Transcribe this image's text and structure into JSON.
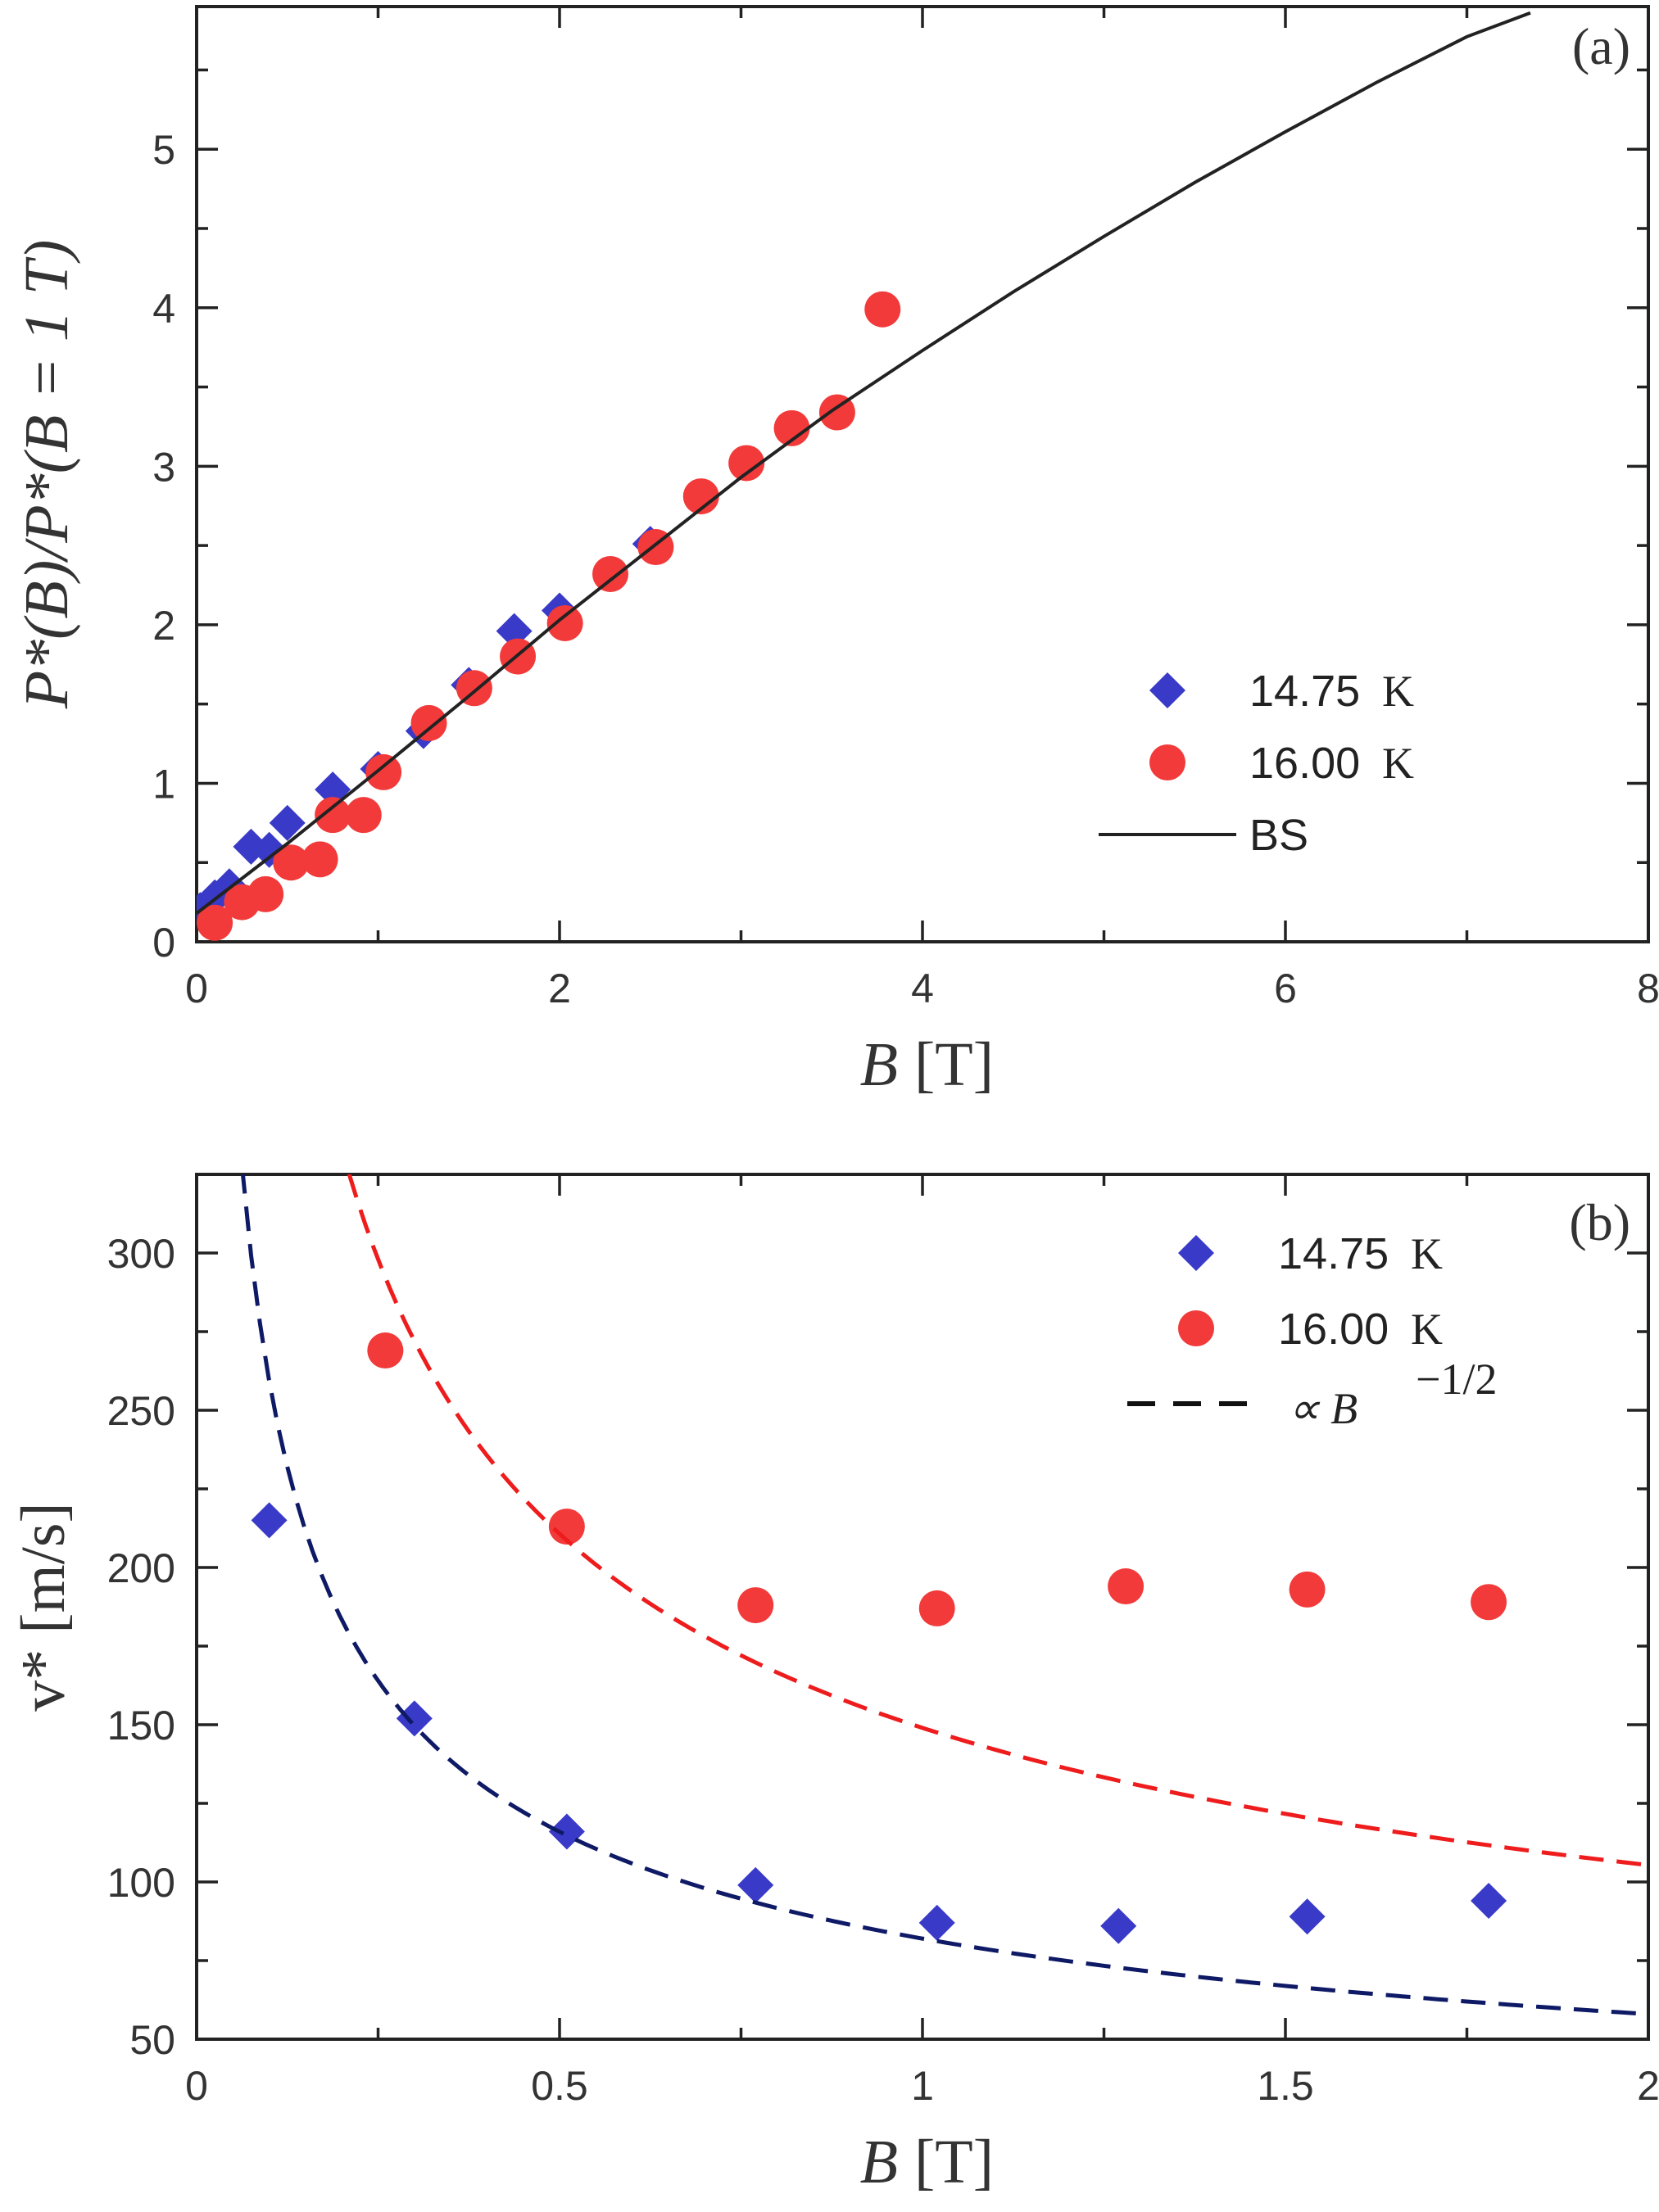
{
  "chart_data": [
    {
      "panel": "(a)",
      "type": "scatter",
      "xlabel": {
        "var": "B",
        "unit": "[T]"
      },
      "ylabel": "P*(B)/P*(B = 1 T)",
      "xlim": [
        0,
        8
      ],
      "ylim": [
        0,
        5.9
      ],
      "xticks": [
        0,
        2,
        4,
        6,
        8
      ],
      "yticks": [
        0,
        1,
        2,
        3,
        4,
        5
      ],
      "legend_position": "lower-right",
      "series": [
        {
          "name": "14.75",
          "unit": "K",
          "marker": "diamond",
          "color": "#3a3ac8",
          "x": [
            0.02,
            0.1,
            0.18,
            0.3,
            0.4,
            0.5,
            0.75,
            1.0,
            1.25,
            1.5,
            1.75,
            2.0,
            2.5
          ],
          "y": [
            0.2,
            0.28,
            0.35,
            0.6,
            0.58,
            0.75,
            0.96,
            1.09,
            1.33,
            1.62,
            1.96,
            2.09,
            2.51
          ]
        },
        {
          "name": "16.00",
          "unit": "K",
          "marker": "circle",
          "color": "#f23a3a",
          "x": [
            0.1,
            0.25,
            0.38,
            0.52,
            0.68,
            0.75,
            0.92,
            1.03,
            1.28,
            1.53,
            1.77,
            2.03,
            2.28,
            2.53,
            2.78,
            3.03,
            3.28,
            3.53,
            3.78
          ],
          "y": [
            0.12,
            0.25,
            0.3,
            0.5,
            0.52,
            0.8,
            0.8,
            1.07,
            1.38,
            1.6,
            1.8,
            2.01,
            2.32,
            2.49,
            2.81,
            3.02,
            3.24,
            3.34,
            3.99
          ]
        },
        {
          "name": "BS",
          "type": "line",
          "color": "#222222",
          "x": [
            0,
            0.5,
            1,
            1.5,
            2,
            2.5,
            3,
            3.5,
            4,
            4.5,
            5,
            5.5,
            6,
            6.5,
            7,
            7.35
          ],
          "y": [
            0.18,
            0.62,
            1.08,
            1.55,
            2.03,
            2.48,
            2.93,
            3.35,
            3.73,
            4.1,
            4.45,
            4.79,
            5.11,
            5.42,
            5.71,
            5.86
          ]
        }
      ]
    },
    {
      "panel": "(b)",
      "type": "scatter",
      "xlabel": {
        "var": "B",
        "unit": "[T]"
      },
      "ylabel": "v* [m/s]",
      "xlim": [
        0,
        2
      ],
      "ylim": [
        50,
        325
      ],
      "xticks": [
        0,
        0.5,
        1,
        1.5,
        2
      ],
      "yticks": [
        50,
        100,
        150,
        200,
        250,
        300
      ],
      "legend_position": "top-right",
      "series": [
        {
          "name": "14.75",
          "unit": "K",
          "marker": "diamond",
          "color": "#3a3ac8",
          "x": [
            0.1,
            0.3,
            0.51,
            0.77,
            1.02,
            1.27,
            1.53,
            1.78
          ],
          "y": [
            215,
            152,
            116,
            99,
            87,
            86,
            89,
            94
          ]
        },
        {
          "name": "16.00",
          "unit": "K",
          "marker": "circle",
          "color": "#f23a3a",
          "x": [
            0.26,
            0.51,
            0.77,
            1.02,
            1.28,
            1.53,
            1.78
          ],
          "y": [
            269,
            213,
            188,
            187,
            194,
            193,
            189
          ]
        },
        {
          "name": "∝ B",
          "superscript": "−1/2",
          "type": "dashed-line",
          "legend_color": "#111111",
          "curves": [
            {
              "color": "#0f1a66",
              "coef": 82,
              "xmin": 0.063,
              "xmax": 2
            },
            {
              "color": "#ee1c1c",
              "coef": 149,
              "xmin": 0.21,
              "xmax": 2
            }
          ]
        }
      ]
    }
  ]
}
